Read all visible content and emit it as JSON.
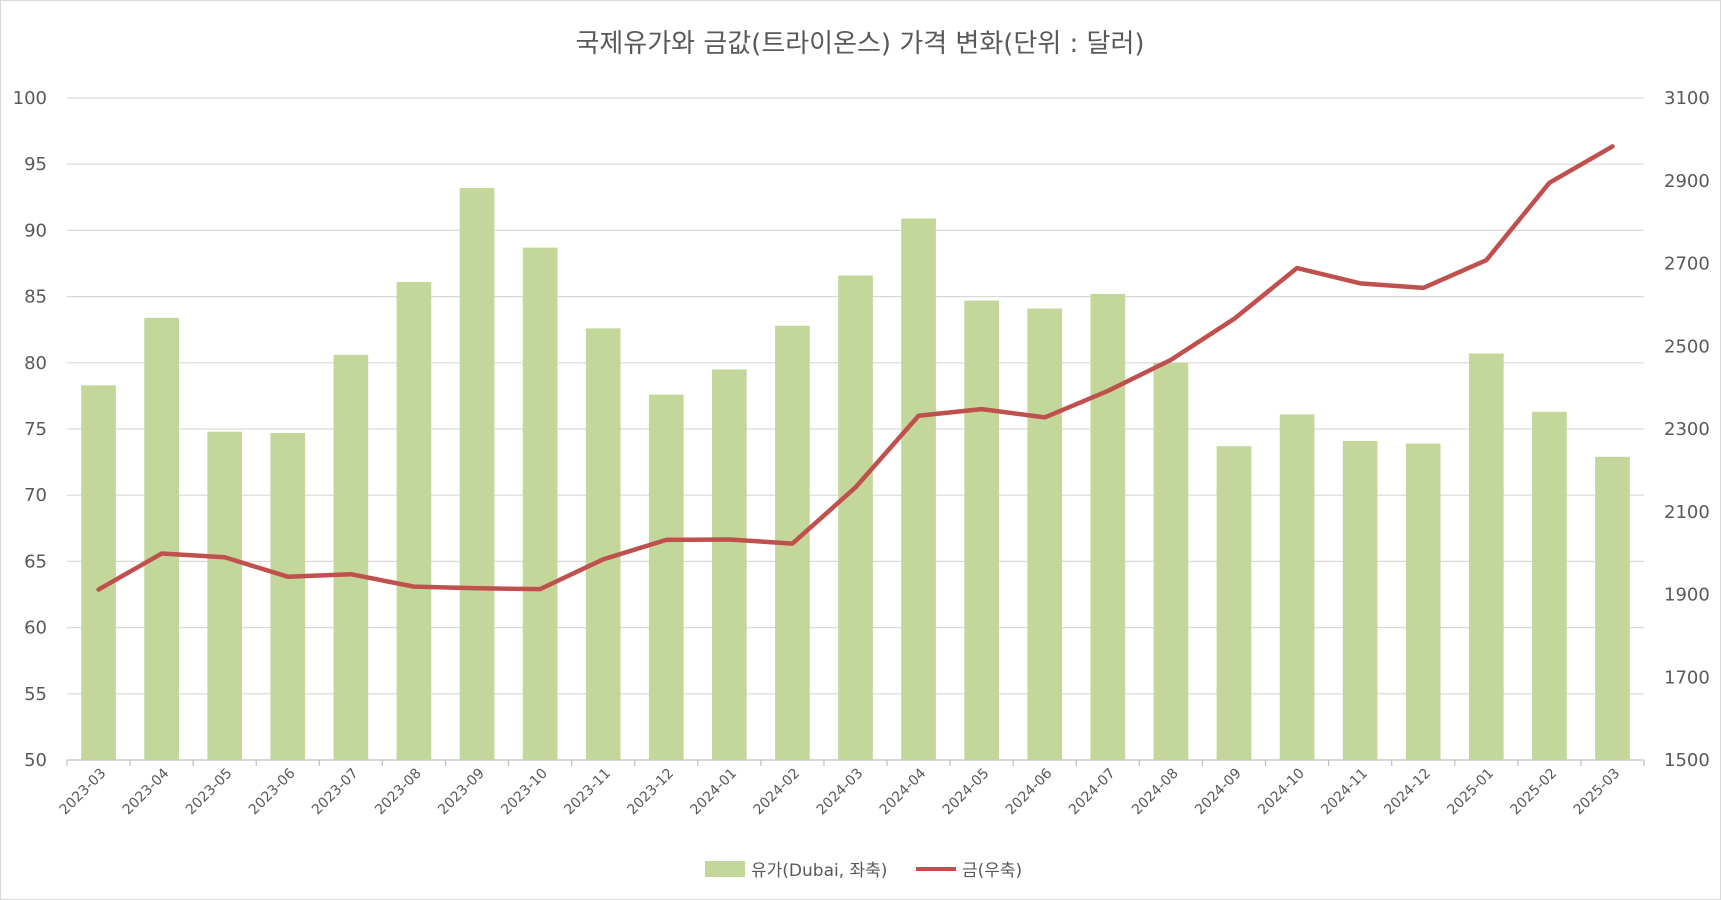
{
  "chart_data": {
    "type": "bar+line",
    "title": "국제유가와 금값(트라이온스) 가격 변화(단위 : 달러)",
    "categories": [
      "2023-03",
      "2023-04",
      "2023-05",
      "2023-06",
      "2023-07",
      "2023-08",
      "2023-09",
      "2023-10",
      "2023-11",
      "2023-12",
      "2024-01",
      "2024-02",
      "2024-03",
      "2024-04",
      "2024-05",
      "2024-06",
      "2024-07",
      "2024-08",
      "2024-09",
      "2024-10",
      "2024-11",
      "2024-12",
      "2025-01",
      "2025-02",
      "2025-03"
    ],
    "series": [
      {
        "name": "유가(Dubai, 좌축)",
        "type": "bar",
        "axis": "left",
        "color": "#c4d79b",
        "values": [
          78.3,
          83.4,
          74.8,
          74.7,
          80.6,
          86.1,
          93.2,
          88.7,
          82.6,
          77.6,
          79.5,
          82.8,
          86.6,
          90.9,
          84.7,
          84.1,
          85.2,
          80.0,
          73.7,
          76.1,
          74.1,
          73.9,
          80.7,
          76.3,
          72.9
        ]
      },
      {
        "name": "금(우축)",
        "type": "line",
        "axis": "right",
        "color": "#c0504d",
        "values": [
          1912,
          1999,
          1990,
          1943,
          1949,
          1919,
          1915,
          1913,
          1985,
          2032,
          2033,
          2023,
          2159,
          2332,
          2348,
          2328,
          2392,
          2467,
          2566,
          2689,
          2652,
          2641,
          2708,
          2895,
          2983
        ]
      }
    ],
    "y_left": {
      "min": 50,
      "max": 100,
      "step": 5,
      "ticks": [
        "50",
        "55",
        "60",
        "65",
        "70",
        "75",
        "80",
        "85",
        "90",
        "95",
        "100"
      ]
    },
    "y_right": {
      "min": 1500,
      "max": 3100,
      "step": 200,
      "ticks": [
        "1500",
        "1700",
        "1900",
        "2100",
        "2300",
        "2500",
        "2700",
        "2900",
        "3100"
      ]
    },
    "grid": true,
    "legend": {
      "position": "bottom-center",
      "items": [
        {
          "label": "유가(Dubai, 좌축)",
          "kind": "bar",
          "color": "#c4d79b"
        },
        {
          "label": "금(우축)",
          "kind": "line",
          "color": "#c0504d"
        }
      ]
    }
  }
}
